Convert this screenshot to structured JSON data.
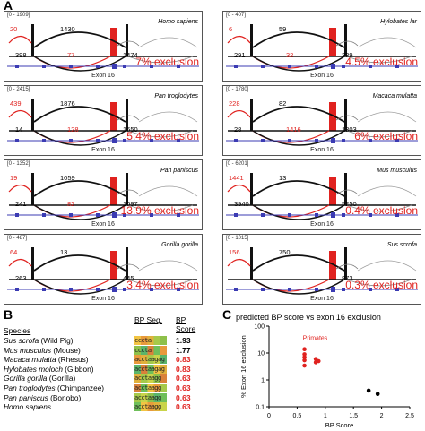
{
  "panel_labels": {
    "a": "A",
    "b": "B",
    "c": "C"
  },
  "exon_label": "Exon 16",
  "sashimi": [
    {
      "range": "[0 - 1909]",
      "species": "Homo sapiens",
      "left_top": "20",
      "center_top": "1430",
      "left_bottom": "398",
      "mid_bottom_red": "77",
      "right_bottom": "1474",
      "exclusion": "7% exclusion"
    },
    {
      "range": "[0 - 407]",
      "species": "Hylobates lar",
      "left_top": "6",
      "center_top": "59",
      "left_bottom": "291",
      "mid_bottom_red": "32",
      "right_bottom": "339",
      "exclusion": "4.5% exclusion"
    },
    {
      "range": "[0 - 2415]",
      "species": "Pan troglodytes",
      "left_top": "439",
      "center_top": "1876",
      "left_bottom": "14",
      "mid_bottom_red": "128",
      "right_bottom": "1650",
      "exclusion": "5.4% exclusion"
    },
    {
      "range": "[0 - 1780]",
      "species": "Macaca mulatta",
      "left_top": "228",
      "center_top": "82",
      "left_bottom": "28",
      "mid_bottom_red": "1416",
      "right_bottom": "1303",
      "exclusion": "6% exclusion"
    },
    {
      "range": "[0 - 1352]",
      "species": "Pan paniscus",
      "left_top": "19",
      "center_top": "1059",
      "left_bottom": "241",
      "mid_bottom_red": "82",
      "right_bottom": "1097",
      "exclusion": "13.9% exclusion"
    },
    {
      "range": "[0 - 6201]",
      "species": "Mus musculus",
      "left_top": "1441",
      "center_top": "13",
      "left_bottom": "3940",
      "mid_bottom_red": "",
      "right_bottom": "5250",
      "exclusion": "0.4% exclusion"
    },
    {
      "range": "[0 - 487]",
      "species": "Gorilla gorilla",
      "left_top": "64",
      "center_top": "13",
      "left_bottom": "263",
      "mid_bottom_red": "",
      "right_bottom": "445",
      "exclusion": "3.4% exclusion"
    },
    {
      "range": "[0 - 1015]",
      "species": "Sus scrofa",
      "left_top": "156",
      "center_top": "750",
      "left_bottom": "",
      "mid_bottom_red": "",
      "right_bottom": "873",
      "exclusion": "0.3% exclusion"
    }
  ],
  "table": {
    "headers": {
      "species": "Species",
      "seq": "BP Seq.",
      "score": "BP Score"
    },
    "rows": [
      {
        "latin": "Sus scrofa",
        "common": " (Wild Pig)",
        "seq": "cccta atgg",
        "score": "1.93",
        "score_color": "#000000"
      },
      {
        "latin": "Mus musculus",
        "common": " (Mouse)",
        "seq": "cccta acaa",
        "score": "1.77",
        "score_color": "#000000"
      },
      {
        "latin": "Macaca mulatta",
        "common": " (Rhesus)",
        "seq": "acctaagag",
        "score": "0.83",
        "score_color": "#e0221f"
      },
      {
        "latin": "Hylobates moloch",
        "common": " (Gibbon)",
        "seq": "acctaagag",
        "score": "0.83",
        "score_color": "#e0221f"
      },
      {
        "latin": "Gorilla gorilla",
        "common": " (Gorilla)",
        "seq": "acctaagg",
        "score": "0.63",
        "score_color": "#e0221f"
      },
      {
        "latin": "Pan troglodytes",
        "common": " (Chimpanzee)",
        "seq": "acctaagg",
        "score": "0.63",
        "score_color": "#e0221f"
      },
      {
        "latin": "Pan paniscus",
        "common": " (Bonobo)",
        "seq": "acctaagg",
        "score": "0.63",
        "score_color": "#e0221f"
      },
      {
        "latin": "Homo sapiens",
        "common": "",
        "seq": "acctaagg",
        "score": "0.63",
        "score_color": "#e0221f"
      }
    ]
  },
  "chart_data": {
    "type": "scatter",
    "title": "predicted BP score vs exon 16 exclusion",
    "xlabel": "BP Score",
    "ylabel": "% Exon 16 exclusion",
    "xlim": [
      0,
      2.5
    ],
    "ylim": [
      0.1,
      100
    ],
    "yscale": "log",
    "x_ticks": [
      "0",
      "0.5",
      "1",
      "1.5",
      "2",
      "2.5"
    ],
    "y_ticks": [
      "0.1",
      "1",
      "10",
      "100"
    ],
    "annotation": "Primates",
    "series": [
      {
        "color": "#e0221f",
        "points": [
          [
            0.63,
            7
          ],
          [
            0.63,
            5.4
          ],
          [
            0.63,
            13.9
          ],
          [
            0.63,
            3.4
          ],
          [
            0.63,
            9
          ],
          [
            0.83,
            6
          ],
          [
            0.83,
            4.5
          ],
          [
            0.88,
            5
          ]
        ]
      },
      {
        "color": "#000000",
        "points": [
          [
            1.77,
            0.4
          ],
          [
            1.93,
            0.3
          ]
        ]
      }
    ]
  }
}
